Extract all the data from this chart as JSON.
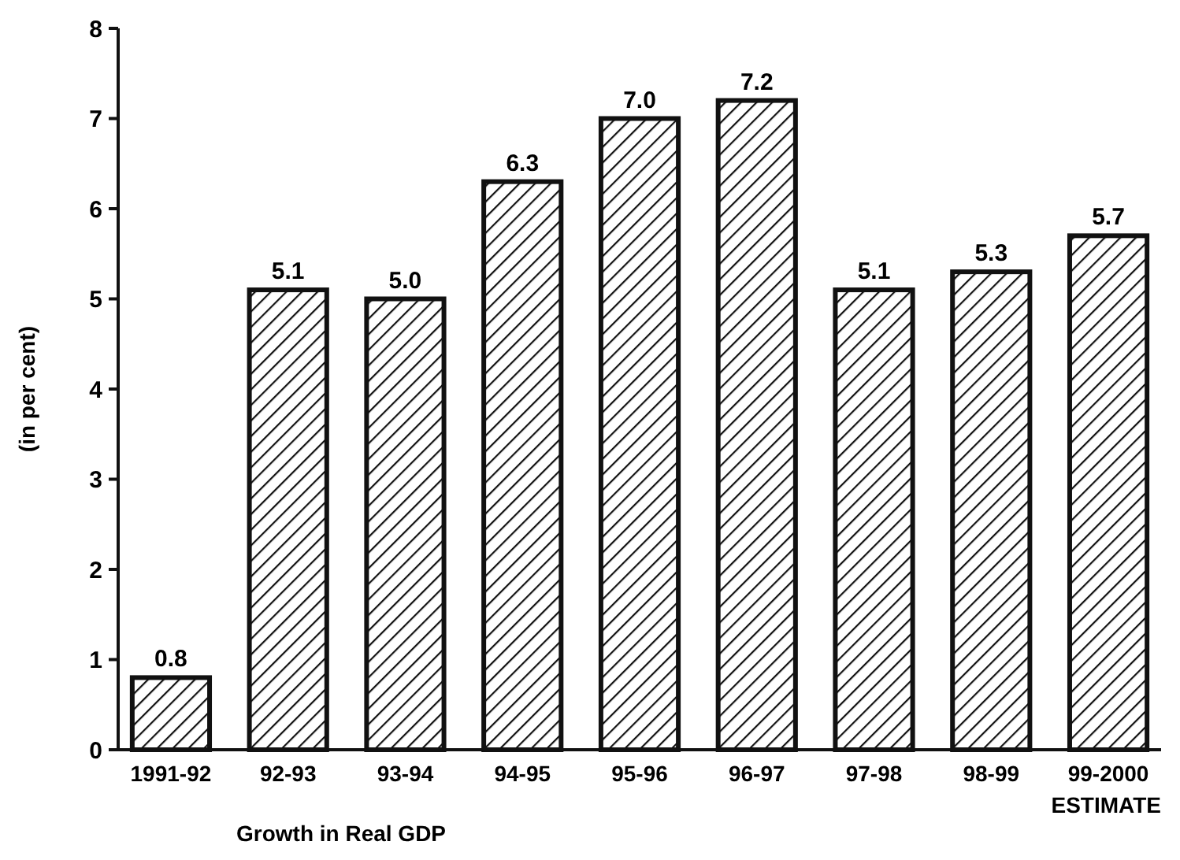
{
  "chart_data": {
    "type": "bar",
    "xlabel": "Growth in Real GDP",
    "ylabel": "(in per cent)",
    "categories": [
      "1991-92",
      "92-93",
      "93-94",
      "94-95",
      "95-96",
      "96-97",
      "97-98",
      "98-99",
      "99-2000"
    ],
    "values": [
      0.8,
      5.1,
      5.0,
      6.3,
      7.0,
      7.2,
      5.1,
      5.3,
      5.7
    ],
    "value_labels": [
      "0.8",
      "5.1",
      "5.0",
      "6.3",
      "7.0",
      "7.2",
      "5.1",
      "5.3",
      "5.7"
    ],
    "color": "#111111",
    "ylim": [
      0,
      8
    ],
    "yticks": [
      0,
      1,
      2,
      3,
      4,
      5,
      6,
      7,
      8
    ],
    "grid": false,
    "annotations": [
      "ESTIMATE"
    ]
  }
}
